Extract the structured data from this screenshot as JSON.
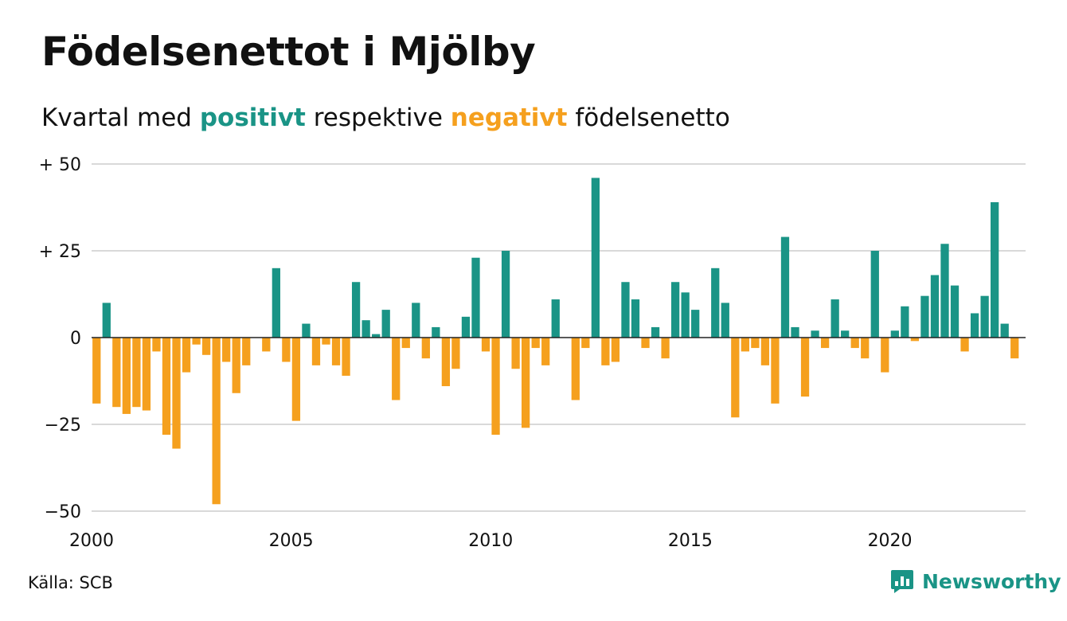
{
  "title": "Födelsenettot i Mjölby",
  "subtitle": {
    "prefix": "Kvartal med ",
    "positive_word": "positivt",
    "middle": " respektive ",
    "negative_word": "negativt",
    "suffix": " födelsenetto"
  },
  "colors": {
    "positive": "#1a9486",
    "negative": "#f5a01e",
    "grid": "#d9d9d9",
    "zero_line": "#222222"
  },
  "source": "Källa: SCB",
  "brand": {
    "name": "Newsworthy",
    "icon": "newsworthy-logo-icon"
  },
  "chart_data": {
    "type": "bar",
    "title": "Födelsenettot i Mjölby",
    "subtitle": "Kvartal med positivt respektive negativt födelsenetto",
    "x_start": 2000,
    "x_end": 2023.4,
    "x_ticks": [
      2000,
      2005,
      2010,
      2015,
      2020
    ],
    "x_tick_labels": [
      "2000",
      "2005",
      "2010",
      "2015",
      "2020"
    ],
    "ylim": [
      -50,
      50
    ],
    "y_ticks": [
      50,
      25,
      0,
      -25,
      -50
    ],
    "y_tick_labels": [
      "+ 50",
      "+ 25",
      "0",
      "−25",
      "−50"
    ],
    "grid": true,
    "series": [
      {
        "frequency": "quarterly",
        "start_quarter": "2000 Q1",
        "values": [
          -19,
          10,
          -20,
          -22,
          -20,
          -21,
          -4,
          -28,
          -32,
          -10,
          -2,
          -5,
          -48,
          -7,
          -16,
          -8,
          0,
          -4,
          20,
          -7,
          -24,
          4,
          -8,
          -2,
          -8,
          -11,
          16,
          5,
          1,
          8,
          -18,
          -3,
          10,
          -6,
          3,
          -14,
          -9,
          6,
          23,
          -4,
          -28,
          25,
          -9,
          -26,
          -3,
          -8,
          11,
          0,
          -18,
          -3,
          46,
          -8,
          -7,
          16,
          11,
          -3,
          3,
          -6,
          16,
          13,
          8,
          0,
          20,
          10,
          -23,
          -4,
          -3,
          -8,
          -19,
          29,
          3,
          -17,
          2,
          -3,
          11,
          2,
          -3,
          -6,
          25,
          -10,
          2,
          9,
          -1,
          12,
          18,
          27,
          15,
          -4,
          7,
          12,
          39,
          4,
          -6
        ]
      }
    ]
  }
}
